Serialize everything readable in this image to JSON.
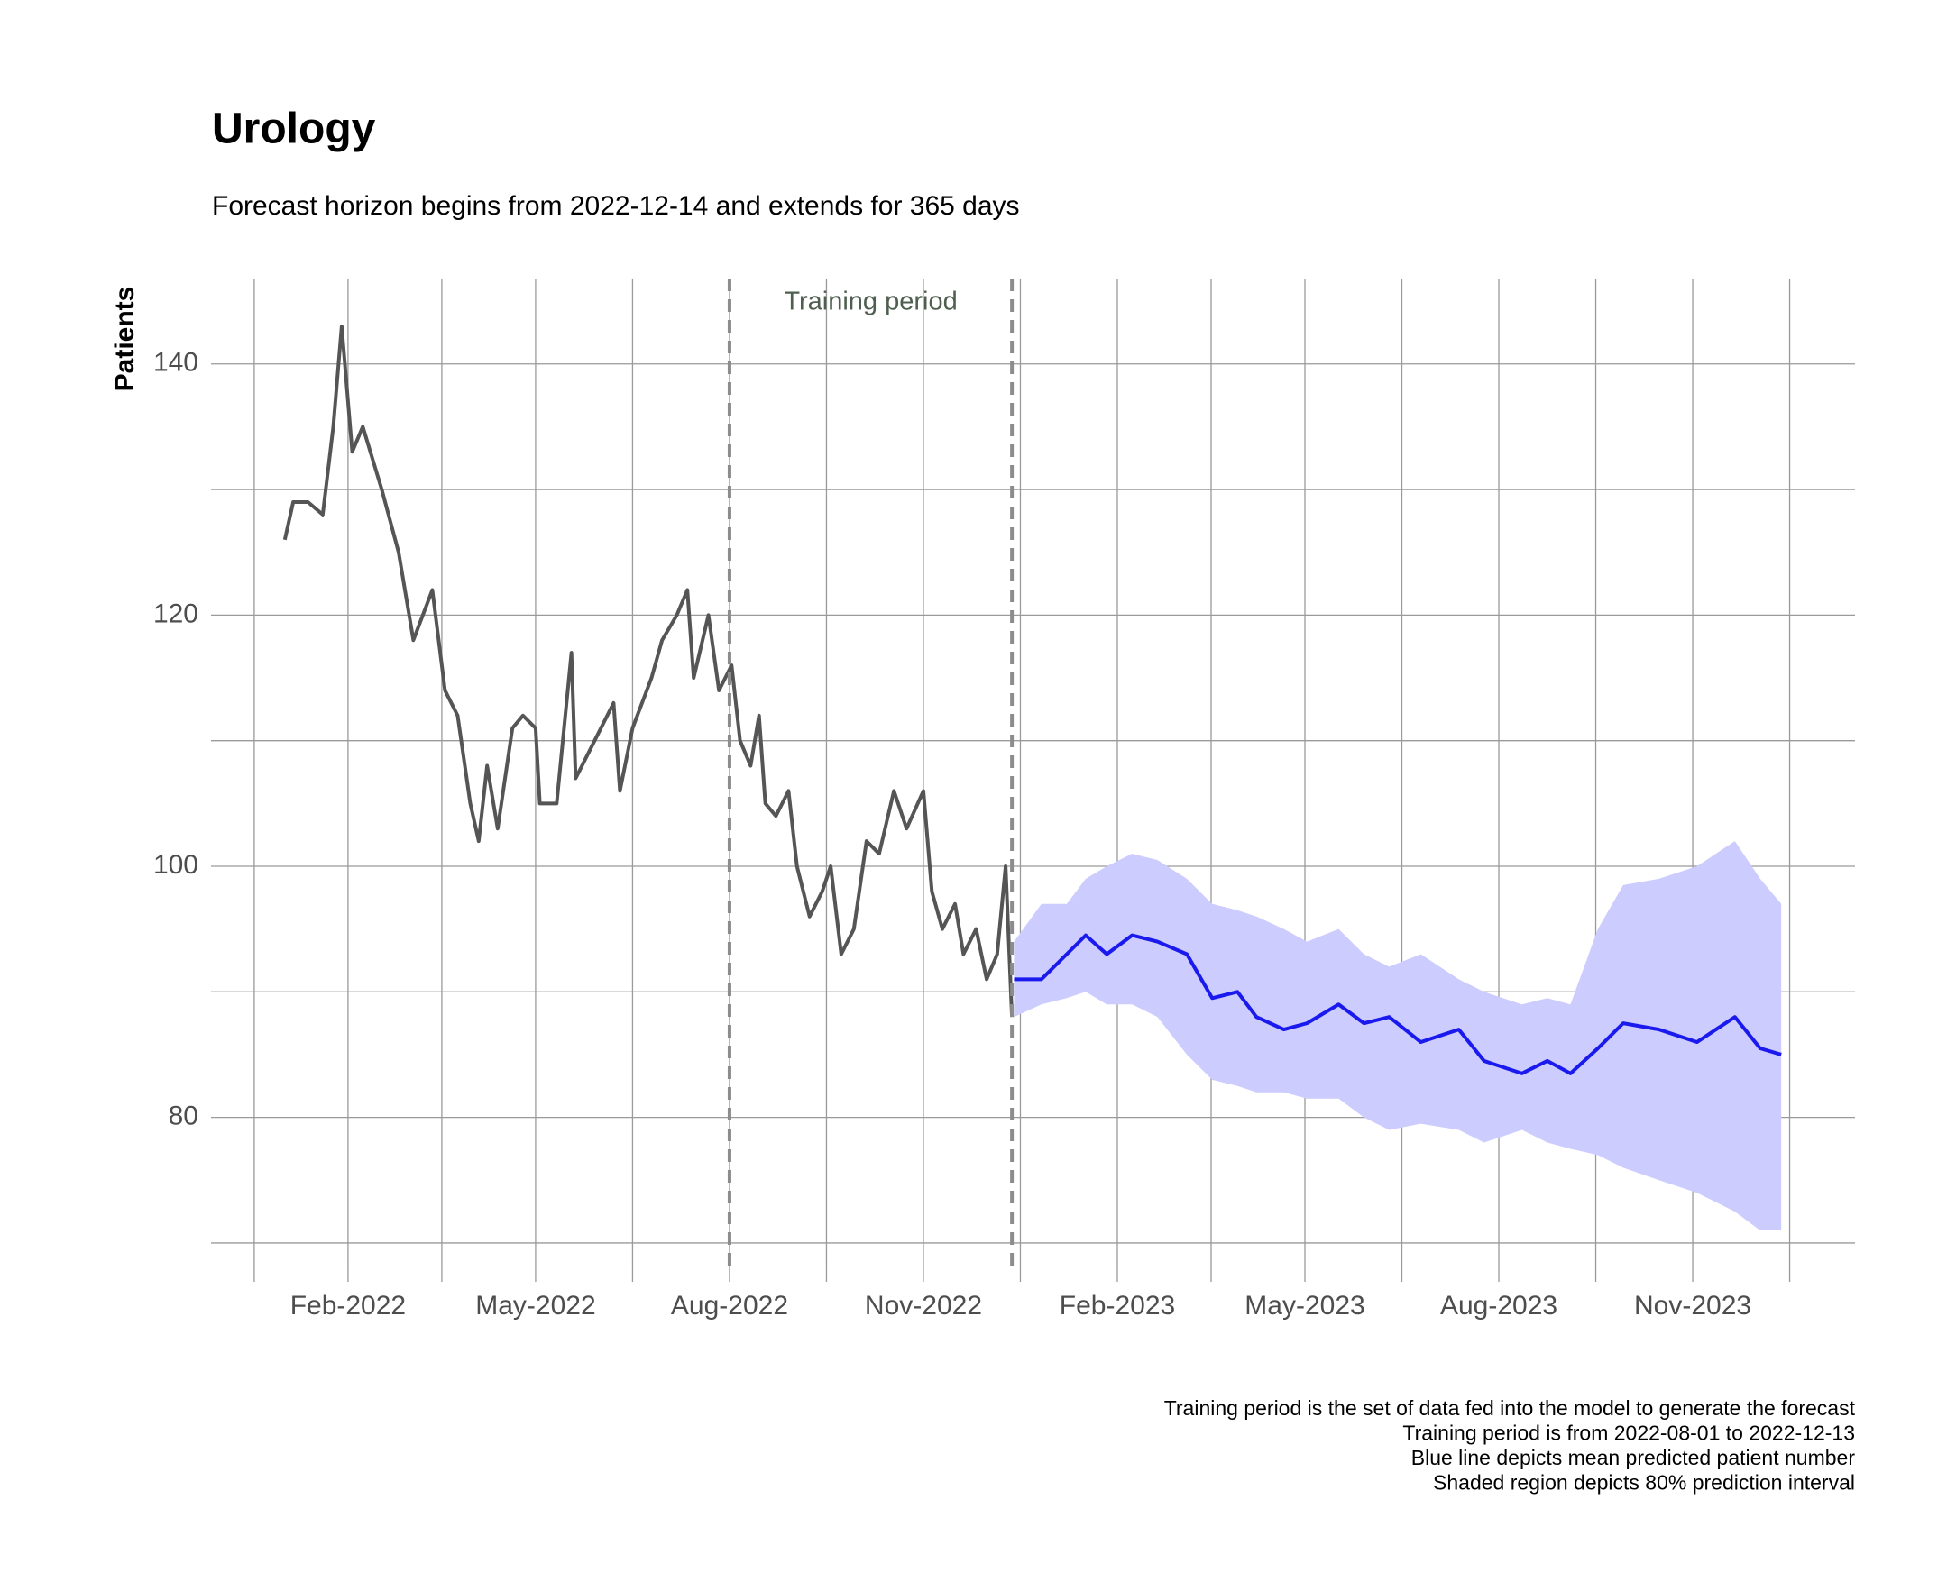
{
  "chart_data": {
    "type": "line",
    "title": "Urology",
    "subtitle": "Forecast horizon begins from 2022-12-14 and extends for 365 days",
    "y_label": "Patients",
    "annotation": "Training period",
    "caption": [
      "Training period is the set of data fed into the model to generate the forecast",
      "Training period is from 2022-08-01 to 2022-12-13",
      "Blue line depicts mean predicted patient number",
      "Shaded region depicts 80% prediction interval"
    ],
    "vlines": [
      "2022-08-01",
      "2022-12-13"
    ],
    "xlim": [
      "2021-11-28",
      "2024-01-17"
    ],
    "xticks": [
      {
        "value": "2022-02-01",
        "label": "Feb-2022"
      },
      {
        "value": "2022-05-01",
        "label": "May-2022"
      },
      {
        "value": "2022-08-01",
        "label": "Aug-2022"
      },
      {
        "value": "2022-11-01",
        "label": "Nov-2022"
      },
      {
        "value": "2023-02-01",
        "label": "Feb-2023"
      },
      {
        "value": "2023-05-01",
        "label": "May-2023"
      },
      {
        "value": "2023-08-01",
        "label": "Aug-2023"
      },
      {
        "value": "2023-11-01",
        "label": "Nov-2023"
      }
    ],
    "ylim": [
      68.2,
      146.8
    ],
    "yticks": [
      80,
      100,
      120,
      140
    ],
    "grid": true,
    "series": [
      {
        "color": "#555555",
        "x": [
          "2022-01-02",
          "2022-01-06",
          "2022-01-13",
          "2022-01-20",
          "2022-01-25",
          "2022-01-29",
          "2022-02-03",
          "2022-02-08",
          "2022-02-17",
          "2022-02-25",
          "2022-03-04",
          "2022-03-13",
          "2022-03-19",
          "2022-03-25",
          "2022-03-31",
          "2022-04-04",
          "2022-04-08",
          "2022-04-13",
          "2022-04-20",
          "2022-04-25",
          "2022-05-01",
          "2022-05-03",
          "2022-05-11",
          "2022-05-18",
          "2022-05-20",
          "2022-05-29",
          "2022-06-07",
          "2022-06-10",
          "2022-06-16",
          "2022-06-25",
          "2022-06-30",
          "2022-07-07",
          "2022-07-12",
          "2022-07-15",
          "2022-07-22",
          "2022-07-27",
          "2022-08-02",
          "2022-08-06",
          "2022-08-11",
          "2022-08-15",
          "2022-08-18",
          "2022-08-23",
          "2022-08-29",
          "2022-09-02",
          "2022-09-08",
          "2022-09-14",
          "2022-09-18",
          "2022-09-23",
          "2022-09-29",
          "2022-10-05",
          "2022-10-11",
          "2022-10-18",
          "2022-10-24",
          "2022-11-01",
          "2022-11-05",
          "2022-11-10",
          "2022-11-16",
          "2022-11-20",
          "2022-11-26",
          "2022-12-01",
          "2022-12-06",
          "2022-12-10",
          "2022-12-13"
        ],
        "values": [
          126,
          129,
          129,
          128,
          135,
          143,
          133,
          135,
          130,
          125,
          118,
          122,
          114,
          112,
          105,
          102,
          108,
          103,
          111,
          112,
          111,
          105,
          105,
          117,
          107,
          110,
          113,
          106,
          111,
          115,
          118,
          120,
          122,
          115,
          120,
          114,
          116,
          110,
          108,
          112,
          105,
          104,
          106,
          100,
          96,
          98,
          100,
          93,
          95,
          102,
          101,
          106,
          103,
          106,
          98,
          95,
          97,
          93,
          95,
          91,
          93,
          100,
          88
        ]
      },
      {
        "color": "#1a1aee",
        "x": [
          "2022-12-14",
          "2022-12-27",
          "2023-01-08",
          "2023-01-17",
          "2023-01-27",
          "2023-02-08",
          "2023-02-20",
          "2023-03-06",
          "2023-03-18",
          "2023-03-30",
          "2023-04-08",
          "2023-04-21",
          "2023-05-02",
          "2023-05-17",
          "2023-05-29",
          "2023-06-10",
          "2023-06-25",
          "2023-07-13",
          "2023-07-25",
          "2023-08-12",
          "2023-08-24",
          "2023-09-04",
          "2023-09-17",
          "2023-09-29",
          "2023-10-16",
          "2023-11-03",
          "2023-11-21",
          "2023-12-03",
          "2023-12-13"
        ],
        "values": [
          91,
          91,
          93,
          94.5,
          93,
          94.5,
          94,
          93,
          89.5,
          90,
          88,
          87,
          87.5,
          89,
          87.5,
          88,
          86,
          87,
          84.5,
          83.5,
          84.5,
          83.5,
          85.5,
          87.5,
          87,
          86,
          88,
          85.5,
          85
        ],
        "interval_color": "#ccccff",
        "lower": [
          88,
          89,
          89.5,
          90,
          89,
          89,
          88,
          85,
          83,
          82.5,
          82,
          82,
          81.5,
          81.5,
          80,
          79,
          79.5,
          79,
          78,
          79,
          78,
          77.5,
          77,
          76,
          75,
          74,
          72.5,
          71,
          71
        ],
        "upper": [
          94,
          97,
          97,
          99,
          100,
          101,
          100.5,
          99,
          97,
          96.5,
          96,
          95,
          94,
          95,
          93,
          92,
          93,
          91,
          90,
          89,
          89.5,
          89,
          95,
          98.5,
          99,
          100,
          102,
          99,
          97
        ]
      }
    ]
  }
}
